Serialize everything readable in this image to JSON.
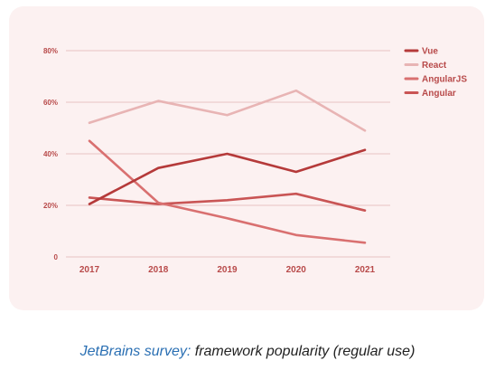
{
  "caption": {
    "link_text": "JetBrains survey:",
    "text": " framework popularity (regular use)"
  },
  "colors": {
    "background": "#fcf1f1",
    "grid": "#e8c4c4",
    "axis_text": "#b84a4a"
  },
  "chart_data": {
    "type": "line",
    "title": "",
    "xlabel": "",
    "ylabel": "",
    "categories": [
      "2017",
      "2018",
      "2019",
      "2020",
      "2021"
    ],
    "yticks": [
      "0",
      "20%",
      "40%",
      "60%",
      "80%"
    ],
    "ylim": [
      0,
      80
    ],
    "grid": true,
    "legend_position": "right",
    "series": [
      {
        "name": "Vue",
        "color": "#b53a3a",
        "values": [
          20.5,
          34.5,
          40,
          33,
          41.5
        ]
      },
      {
        "name": "React",
        "color": "#e8b4b4",
        "values": [
          52,
          60.5,
          55,
          64.5,
          49
        ]
      },
      {
        "name": "AngularJS",
        "color": "#d97070",
        "values": [
          45,
          21,
          15,
          8.5,
          5.5
        ]
      },
      {
        "name": "Angular",
        "color": "#c95555",
        "values": [
          23,
          20.5,
          22,
          24.5,
          18
        ]
      }
    ]
  }
}
